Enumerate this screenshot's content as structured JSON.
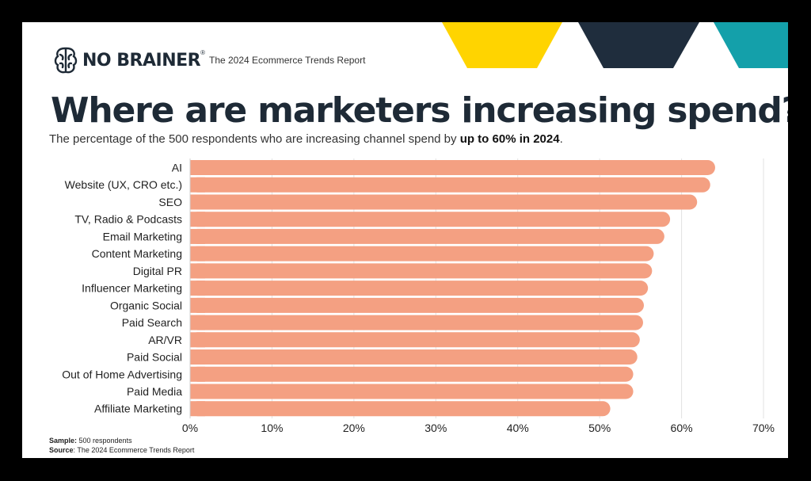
{
  "brand": {
    "name": "NO BRAINER",
    "registered_mark": "®",
    "report": "The 2024 Ecommerce Trends Report"
  },
  "heading": {
    "title": "Where are marketers increasing spend?",
    "subtitle_prefix": "The percentage of the 500 respondents who are increasing channel spend by ",
    "subtitle_bold": "up to 60% in 2024",
    "subtitle_suffix": "."
  },
  "footer": {
    "sample_label": "Sample:",
    "sample_value": " 500 respondents",
    "source_label": "Source",
    "source_value": ": The 2024 Ecommerce Trends Report"
  },
  "colors": {
    "bar": "#f4a082",
    "yellow": "#ffd400",
    "navy": "#1f2d3d",
    "teal": "#14a0aa",
    "grid": "#e2e2e2",
    "text": "#1e2a36"
  },
  "chart_data": {
    "type": "bar",
    "orientation": "horizontal",
    "title": "Where are marketers increasing spend?",
    "categories": [
      "AI",
      "Website (UX, CRO etc.)",
      "SEO",
      "TV, Radio & Podcasts",
      "Email Marketing",
      "Content Marketing",
      "Digital PR",
      "Influencer Marketing",
      "Organic Social",
      "Paid Search",
      "AR/VR",
      "Paid Social",
      "Out of Home Advertising",
      "Paid Media",
      "Affiliate Marketing"
    ],
    "values": [
      64.1,
      63.5,
      61.9,
      58.6,
      57.9,
      56.6,
      56.4,
      55.9,
      55.4,
      55.3,
      54.9,
      54.6,
      54.1,
      54.1,
      51.3
    ],
    "x_ticks": [
      "0%",
      "10%",
      "20%",
      "30%",
      "40%",
      "50%",
      "60%",
      "70%"
    ],
    "xlim": [
      0,
      70
    ],
    "grid": true,
    "legend": "none"
  }
}
